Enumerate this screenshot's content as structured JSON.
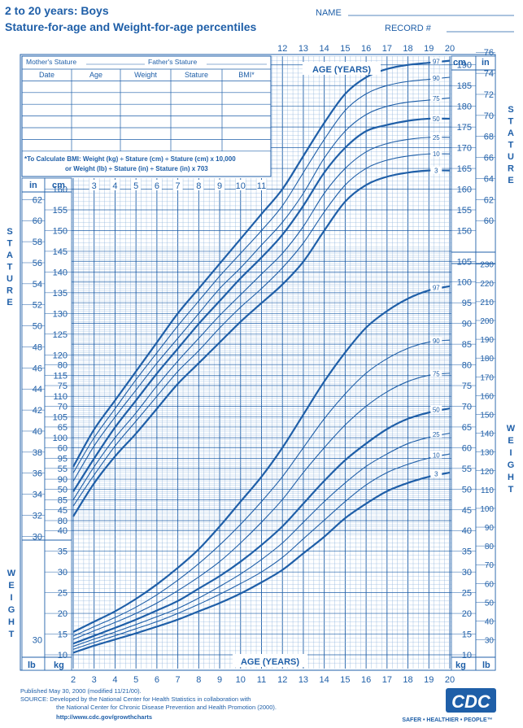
{
  "header": {
    "title_line1": "2 to 20 years: Boys",
    "title_line2": "Stature-for-age and Weight-for-age percentiles",
    "name_label": "NAME",
    "record_label": "RECORD #"
  },
  "record_table": {
    "mothers_stature": "Mother's Stature",
    "fathers_stature": "Father's Stature",
    "columns": [
      "Date",
      "Age",
      "Weight",
      "Stature",
      "BMI*"
    ],
    "bmi_note_line1": "*To Calculate BMI: Weight (kg) ÷ Stature (cm) ÷ Stature (cm) x 10,000",
    "bmi_note_line2": "or Weight (lb) ÷ Stature (in) ÷ Stature (in) x 703"
  },
  "side_labels": {
    "stature": "STATURE",
    "weight": "WEIGHT"
  },
  "footer": {
    "published": "Published May 30, 2000 (modified 11/21/00).",
    "source_line1": "SOURCE: Developed by the National Center for Health Statistics in collaboration with",
    "source_line2": "the National Center for Chronic Disease Prevention and Health Promotion (2000).",
    "url": "http://www.cdc.gov/growthcharts",
    "logo_text": "CDC",
    "tagline": "SAFER • HEALTHIER • PEOPLE™"
  },
  "colors": {
    "ink": "#1f5fa8",
    "grid_minor": "#8fb4dc",
    "grid_major": "#1f5fa8"
  },
  "chart_data": {
    "type": "line",
    "title": "Stature-for-age and Weight-for-age percentiles",
    "xlabel": "AGE (YEARS)",
    "x_ticks": [
      2,
      3,
      4,
      5,
      6,
      7,
      8,
      9,
      10,
      11,
      12,
      13,
      14,
      15,
      16,
      17,
      18,
      19,
      20
    ],
    "xlim": [
      2,
      20
    ],
    "stature": {
      "ylabel": "STATURE",
      "unit_left": "cm",
      "unit_right": "in",
      "unit_inch_left": "in",
      "ylim_cm": [
        77,
        194
      ],
      "ticks_cm_left": [
        80,
        85,
        90,
        95,
        100,
        105,
        110,
        115,
        120,
        125,
        130,
        135,
        140,
        145,
        150,
        155,
        160
      ],
      "ticks_in_left": [
        30,
        32,
        34,
        36,
        38,
        40,
        42,
        44,
        46,
        48,
        50,
        52,
        54,
        56,
        58,
        60,
        62
      ],
      "ticks_cm_right": [
        150,
        155,
        160,
        165,
        170,
        175,
        180,
        185,
        190
      ],
      "ticks_in_right": [
        60,
        62,
        64,
        66,
        68,
        70,
        72,
        74,
        76
      ],
      "age_ticks_inset": [
        3,
        4,
        5,
        6,
        7,
        8,
        9,
        10,
        11
      ],
      "x": [
        2,
        3,
        4,
        5,
        6,
        7,
        8,
        9,
        10,
        11,
        12,
        13,
        14,
        15,
        16,
        17,
        18,
        19,
        20
      ],
      "series": [
        {
          "name": "97",
          "values": [
            93,
            102,
            109,
            116,
            123,
            130,
            136,
            142,
            148,
            154,
            160,
            168,
            176,
            183,
            187,
            189,
            190,
            190.5,
            191
          ]
        },
        {
          "name": "90",
          "values": [
            91.5,
            100,
            107,
            114,
            120.5,
            127,
            133,
            139,
            144.5,
            150,
            156,
            164,
            172,
            179,
            183,
            185,
            186,
            186.5,
            187
          ]
        },
        {
          "name": "75",
          "values": [
            89.5,
            98,
            105,
            111.5,
            118,
            124,
            130,
            136,
            141,
            146.5,
            152,
            159,
            167.5,
            174,
            178,
            180,
            181,
            181.5,
            182
          ]
        },
        {
          "name": "50",
          "values": [
            87,
            95,
            102.5,
            109,
            115.5,
            121.5,
            127.5,
            133,
            138.5,
            143.5,
            149,
            156,
            164,
            170,
            174,
            175.5,
            176.5,
            177,
            177
          ]
        },
        {
          "name": "25",
          "values": [
            85,
            93,
            100,
            106,
            112.5,
            118.5,
            124,
            129.5,
            134.5,
            139.5,
            144.5,
            151,
            159,
            165,
            169,
            171,
            172,
            172.5,
            172.5
          ]
        },
        {
          "name": "10",
          "values": [
            83.5,
            91,
            98,
            104,
            110,
            116,
            121,
            126.5,
            131.5,
            136,
            141,
            147,
            154.5,
            161,
            165,
            167,
            168,
            168.5,
            168.5
          ]
        },
        {
          "name": "3",
          "values": [
            81,
            89,
            95.5,
            101,
            107,
            113,
            118,
            123,
            128,
            132.5,
            137,
            142.5,
            150,
            157,
            161,
            163,
            164,
            164.5,
            164.5
          ]
        }
      ]
    },
    "weight": {
      "ylabel": "WEIGHT",
      "unit_left_kg": "kg",
      "unit_left_lb": "lb",
      "unit_right_kg": "kg",
      "unit_right_lb": "lb",
      "ylim_kg": [
        7.5,
        108
      ],
      "ticks_kg_left": [
        10,
        15,
        20,
        25,
        30,
        35,
        40,
        45,
        50,
        55,
        60,
        65,
        70,
        75,
        80
      ],
      "ticks_lb_left": [
        30
      ],
      "ticks_kg_right": [
        10,
        15,
        20,
        25,
        30,
        35,
        40,
        45,
        50,
        55,
        60,
        65,
        70,
        75,
        80,
        85,
        90,
        95,
        100,
        105
      ],
      "ticks_lb_right": [
        30,
        40,
        50,
        60,
        70,
        80,
        90,
        100,
        110,
        120,
        130,
        140,
        150,
        160,
        170,
        180,
        190,
        200,
        210,
        220,
        230
      ],
      "x": [
        2,
        3,
        4,
        5,
        6,
        7,
        8,
        9,
        10,
        11,
        12,
        13,
        14,
        15,
        16,
        17,
        18,
        19,
        20
      ],
      "series": [
        {
          "name": "97",
          "values": [
            15.5,
            18,
            20.5,
            23.5,
            27,
            31,
            35.5,
            41,
            47,
            53,
            60,
            68,
            76,
            83,
            89,
            93,
            96,
            98,
            99
          ]
        },
        {
          "name": "90",
          "values": [
            14.5,
            16.8,
            19,
            21.5,
            24.5,
            28,
            32,
            36.5,
            41.5,
            47,
            53,
            60,
            67,
            73,
            78,
            81.5,
            84,
            85.5,
            86
          ]
        },
        {
          "name": "75",
          "values": [
            13.7,
            15.8,
            17.8,
            20,
            22.5,
            25.5,
            28.8,
            32.5,
            37,
            42,
            47.5,
            54,
            60,
            65.5,
            70,
            73.5,
            76,
            77.5,
            78
          ]
        },
        {
          "name": "50",
          "values": [
            12.7,
            14.6,
            16.5,
            18.5,
            20.7,
            23,
            26,
            29,
            32.5,
            36.5,
            41,
            46.5,
            52,
            57,
            61,
            64.5,
            67,
            68.5,
            69.5
          ]
        },
        {
          "name": "25",
          "values": [
            12,
            13.8,
            15.5,
            17.3,
            19.2,
            21.2,
            23.7,
            26.5,
            29.5,
            33,
            37,
            42,
            47,
            51.5,
            55.5,
            58.5,
            61,
            62.5,
            63.5
          ]
        },
        {
          "name": "10",
          "values": [
            11.3,
            13,
            14.6,
            16.3,
            18,
            20,
            22.2,
            24.6,
            27.2,
            30,
            33.5,
            38,
            42.5,
            47,
            51,
            54,
            56,
            57.5,
            58.5
          ]
        },
        {
          "name": "3",
          "values": [
            10.5,
            12.2,
            13.7,
            15.2,
            16.8,
            18.5,
            20.5,
            22.5,
            24.8,
            27.5,
            30.5,
            34.5,
            38.5,
            43,
            46.5,
            49.5,
            51.5,
            53,
            54
          ]
        }
      ]
    },
    "grid": true,
    "legend": "percentile labels at right end of curves"
  }
}
